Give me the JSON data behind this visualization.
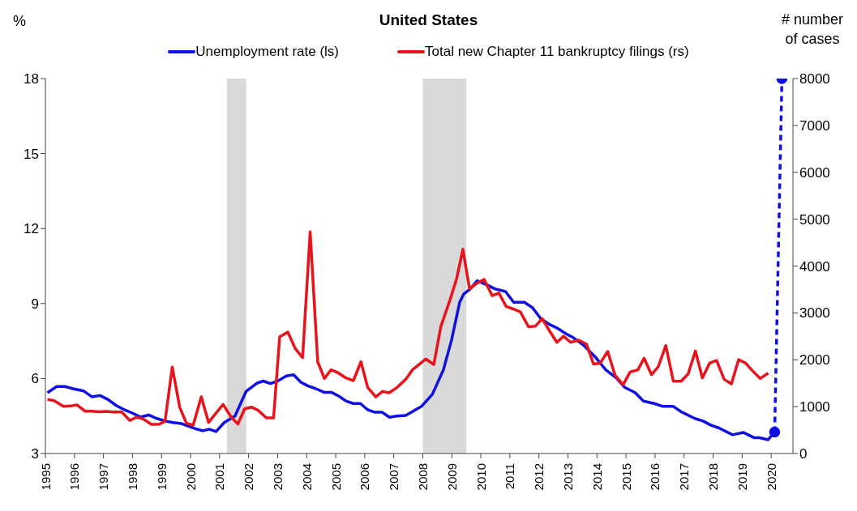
{
  "chart_data": {
    "type": "line",
    "title": "United States",
    "ylabel": "%",
    "y2label": "# number of cases",
    "legend": "top",
    "marker": "none",
    "line_style": "solid",
    "xlim": [
      1995,
      2020.75
    ],
    "xticks": [
      1995,
      1996,
      1997,
      1998,
      1999,
      2000,
      2001,
      2002,
      2003,
      2004,
      2005,
      2006,
      2007,
      2008,
      2009,
      2010,
      2011,
      2012,
      2013,
      2014,
      2015,
      2016,
      2017,
      2018,
      2019,
      2020
    ],
    "ylim": [
      3,
      18
    ],
    "yticks": [
      3,
      6,
      9,
      12,
      15,
      18
    ],
    "y2lim": [
      0,
      8000
    ],
    "y2ticks": [
      0,
      1000,
      2000,
      3000,
      4000,
      5000,
      6000,
      7000,
      8000
    ],
    "bands": [
      {
        "axis": "x",
        "from": 2001.25,
        "to": 2001.92,
        "color": "#d9d9d9"
      },
      {
        "axis": "x",
        "from": 2008,
        "to": 2009.5,
        "color": "#d9d9d9"
      }
    ],
    "series": [
      {
        "name": "Unemployment rate (ls)",
        "color": "#1010e0",
        "axis": "y",
        "x": [
          1995.07,
          1995.39,
          1995.67,
          1995.95,
          1996.32,
          1996.6,
          1996.88,
          1997.16,
          1997.44,
          1997.72,
          1997.99,
          1998.27,
          1998.56,
          1998.84,
          1999.12,
          1999.39,
          1999.67,
          1999.95,
          2000.23,
          2000.42,
          2000.65,
          2000.88,
          2001.16,
          2001.53,
          2001.91,
          2002.28,
          2002.5,
          2002.75,
          2003,
          2003.3,
          2003.55,
          2003.8,
          2004.05,
          2004.3,
          2004.6,
          2004.85,
          2005.1,
          2005.35,
          2005.6,
          2005.85,
          2006.1,
          2006.35,
          2006.6,
          2006.85,
          2007.1,
          2007.41,
          2007.96,
          2008.33,
          2008.71,
          2008.99,
          2009.27,
          2009.41,
          2009.64,
          2009.87,
          2010.2,
          2010.48,
          2010.85,
          2011.13,
          2011.5,
          2011.78,
          2012.06,
          2012.34,
          2012.62,
          2012.99,
          2013.18,
          2013.55,
          2013.92,
          2014.3,
          2014.67,
          2014.95,
          2015.32,
          2015.6,
          2015.97,
          2016.25,
          2016.62,
          2016.9,
          2017.37,
          2017.65,
          2017.93,
          2018.2,
          2018.67,
          2019.05,
          2019.42,
          2019.6,
          2019.89,
          2020.12
        ],
        "values": [
          5.43,
          5.68,
          5.68,
          5.59,
          5.5,
          5.27,
          5.32,
          5.16,
          4.92,
          4.75,
          4.62,
          4.46,
          4.54,
          4.4,
          4.3,
          4.24,
          4.2,
          4.08,
          3.97,
          3.91,
          3.97,
          3.88,
          4.24,
          4.5,
          5.48,
          5.81,
          5.9,
          5.8,
          5.9,
          6.1,
          6.15,
          5.85,
          5.7,
          5.6,
          5.45,
          5.45,
          5.3,
          5.1,
          5.0,
          5.0,
          4.75,
          4.65,
          4.65,
          4.45,
          4.5,
          4.52,
          4.89,
          5.37,
          6.35,
          7.54,
          9.05,
          9.38,
          9.59,
          9.91,
          9.75,
          9.59,
          9.48,
          9.05,
          9.05,
          8.83,
          8.4,
          8.18,
          8.02,
          7.75,
          7.64,
          7.32,
          6.89,
          6.35,
          6.02,
          5.65,
          5.43,
          5.1,
          5.0,
          4.89,
          4.89,
          4.67,
          4.4,
          4.3,
          4.13,
          4.02,
          3.75,
          3.84,
          3.63,
          3.63,
          3.55,
          3.86
        ]
      },
      {
        "color": "#1010e0",
        "axis": "y",
        "line_style": "dashed",
        "marker": "circle",
        "x": [
          2020.12,
          2020.37
        ],
        "values": [
          3.86,
          18
        ]
      },
      {
        "name": "Total new Chapter 11 bankruptcy filings (rs)",
        "color": "#e8141c",
        "axis": "y2",
        "x": [
          1995.07,
          1995.3,
          1995.62,
          1995.86,
          1996.09,
          1996.37,
          1996.6,
          1996.83,
          1997.11,
          1997.35,
          1997.63,
          1997.91,
          1998.14,
          1998.37,
          1998.65,
          1998.93,
          1999.12,
          1999.37,
          1999.63,
          1999.86,
          2000.09,
          2000.37,
          2000.62,
          2000.88,
          2001.12,
          2001.4,
          2001.63,
          2001.86,
          2002.09,
          2002.33,
          2002.61,
          2002.86,
          2003.07,
          2003.35,
          2003.6,
          2003.86,
          2004.12,
          2004.38,
          2004.61,
          2004.84,
          2005.07,
          2005.35,
          2005.61,
          2005.87,
          2006.1,
          2006.38,
          2006.61,
          2006.84,
          2007.12,
          2007.41,
          2007.64,
          2007.87,
          2008.1,
          2008.38,
          2008.62,
          2008.94,
          2009.17,
          2009.38,
          2009.61,
          2009.85,
          2010.11,
          2010.39,
          2010.62,
          2010.87,
          2011.13,
          2011.36,
          2011.64,
          2011.88,
          2012.11,
          2012.39,
          2012.62,
          2012.85,
          2013.09,
          2013.37,
          2013.64,
          2013.88,
          2014.11,
          2014.37,
          2014.62,
          2014.9,
          2015.14,
          2015.41,
          2015.62,
          2015.88,
          2016.11,
          2016.37,
          2016.63,
          2016.9,
          2017.14,
          2017.39,
          2017.63,
          2017.88,
          2018.12,
          2018.38,
          2018.63,
          2018.88,
          2019.12,
          2019.37,
          2019.62,
          2019.9
        ],
        "values": [
          1152,
          1129,
          1007,
          1013,
          1036,
          903,
          903,
          888,
          900,
          884,
          884,
          703,
          777,
          737,
          622,
          628,
          686,
          1843,
          979,
          645,
          605,
          1209,
          662,
          864,
          1048,
          777,
          628,
          950,
          990,
          921,
          760,
          760,
          2487,
          2591,
          2245,
          2044,
          4732,
          1957,
          1601,
          1785,
          1727,
          1612,
          1555,
          1957,
          1411,
          1209,
          1324,
          1296,
          1411,
          1583,
          1785,
          1900,
          2016,
          1900,
          2706,
          3282,
          3742,
          4358,
          3512,
          3627,
          3713,
          3368,
          3425,
          3138,
          3080,
          3022,
          2706,
          2718,
          2879,
          2591,
          2372,
          2504,
          2372,
          2418,
          2332,
          1911,
          1928,
          2176,
          1670,
          1468,
          1739,
          1785,
          2033,
          1681,
          1853,
          2303,
          1543,
          1543,
          1698,
          2188,
          1612,
          1928,
          1986,
          1583,
          1485,
          2003,
          1928,
          1756,
          1601,
          1715
        ]
      }
    ]
  }
}
